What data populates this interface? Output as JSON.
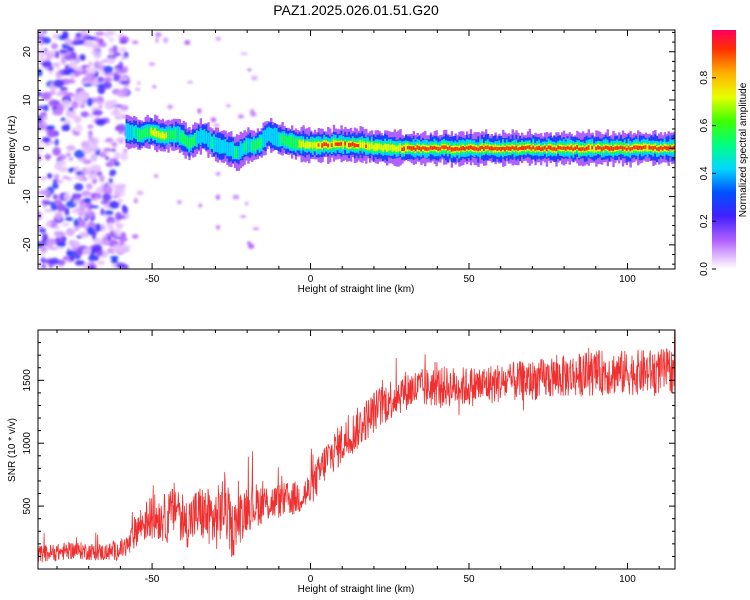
{
  "figure_title": "PAZ1.2025.026.01.51.G20",
  "chart_data": [
    {
      "type": "heatmap",
      "xlabel": "Height of straight line (km)",
      "ylabel": "Frequency (Hz)",
      "xlim": [
        -86,
        115
      ],
      "ylim": [
        -25,
        24.5
      ],
      "xticks": [
        -50,
        0,
        50,
        100
      ],
      "yticks": [
        -20,
        -10,
        0,
        10,
        20
      ],
      "grid": false,
      "colorbar": {
        "label": "Normalized spectral amplitude",
        "range": [
          0,
          1
        ],
        "ticks": [
          "0.0",
          "0.2",
          "0.4",
          "0.6",
          "0.8"
        ],
        "colormap": "rainbow (magenta → blue → cyan → green → yellow → orange → red)"
      },
      "ridge": {
        "description": "dominant frequency track",
        "x": [
          -58,
          -54,
          -50,
          -46,
          -42,
          -38,
          -34,
          -30,
          -26,
          -23,
          -20,
          -16,
          -13,
          -10,
          -7,
          -4,
          0,
          5,
          10,
          15,
          20,
          25,
          30,
          40,
          50,
          60,
          70,
          80,
          90,
          100,
          110,
          115
        ],
        "y": [
          3.5,
          3.0,
          3.5,
          2.5,
          3.0,
          1.0,
          2.5,
          1.0,
          0.0,
          -1.0,
          0.5,
          0.8,
          3.0,
          2.0,
          1.5,
          1.0,
          0.5,
          0.8,
          0.8,
          0.8,
          0.3,
          0.0,
          0.0,
          0.0,
          0.0,
          0.0,
          0.0,
          0.0,
          0.0,
          0.0,
          0.0,
          0.0
        ],
        "amplitude": [
          0.45,
          0.6,
          0.75,
          0.8,
          0.55,
          0.6,
          0.5,
          0.55,
          0.5,
          0.55,
          0.55,
          0.6,
          0.45,
          0.55,
          0.6,
          0.7,
          0.9,
          0.95,
          0.97,
          0.98,
          0.85,
          0.9,
          0.97,
          0.98,
          0.98,
          0.98,
          0.97,
          0.98,
          0.97,
          0.98,
          0.97,
          0.98
        ]
      },
      "noise_region": {
        "x_range": [
          -86,
          -58
        ],
        "y_range": [
          -25,
          24.5
        ],
        "amplitude_range": [
          0.0,
          0.25
        ]
      }
    },
    {
      "type": "line",
      "xlabel": "Height of straight line (km)",
      "ylabel": "SNR (10 * v/v)",
      "xlim": [
        -86,
        115
      ],
      "ylim": [
        0,
        1900
      ],
      "xticks": [
        -50,
        0,
        50,
        100
      ],
      "yticks": [
        500,
        1000,
        1500
      ],
      "grid": false,
      "color": "#f03030",
      "series": [
        {
          "x": [
            -86,
            -80,
            -75,
            -70,
            -65,
            -60,
            -57,
            -55,
            -50,
            -45,
            -42,
            -40,
            -35,
            -30,
            -27,
            -25,
            -20,
            -15,
            -10,
            -5,
            0,
            5,
            10,
            15,
            20,
            25,
            30,
            40,
            50,
            60,
            70,
            80,
            90,
            100,
            110,
            115
          ],
          "y": [
            120,
            130,
            150,
            140,
            130,
            150,
            200,
            320,
            420,
            400,
            520,
            350,
            450,
            380,
            520,
            300,
            500,
            520,
            540,
            560,
            620,
            870,
            1000,
            1120,
            1250,
            1350,
            1420,
            1450,
            1450,
            1480,
            1500,
            1530,
            1560,
            1560,
            1570,
            1580
          ],
          "spread": [
            70,
            70,
            70,
            70,
            70,
            80,
            100,
            140,
            180,
            200,
            220,
            200,
            220,
            250,
            260,
            220,
            200,
            160,
            140,
            140,
            150,
            160,
            170,
            170,
            170,
            170,
            160,
            160,
            160,
            160,
            160,
            170,
            180,
            180,
            180,
            180
          ]
        }
      ]
    }
  ]
}
